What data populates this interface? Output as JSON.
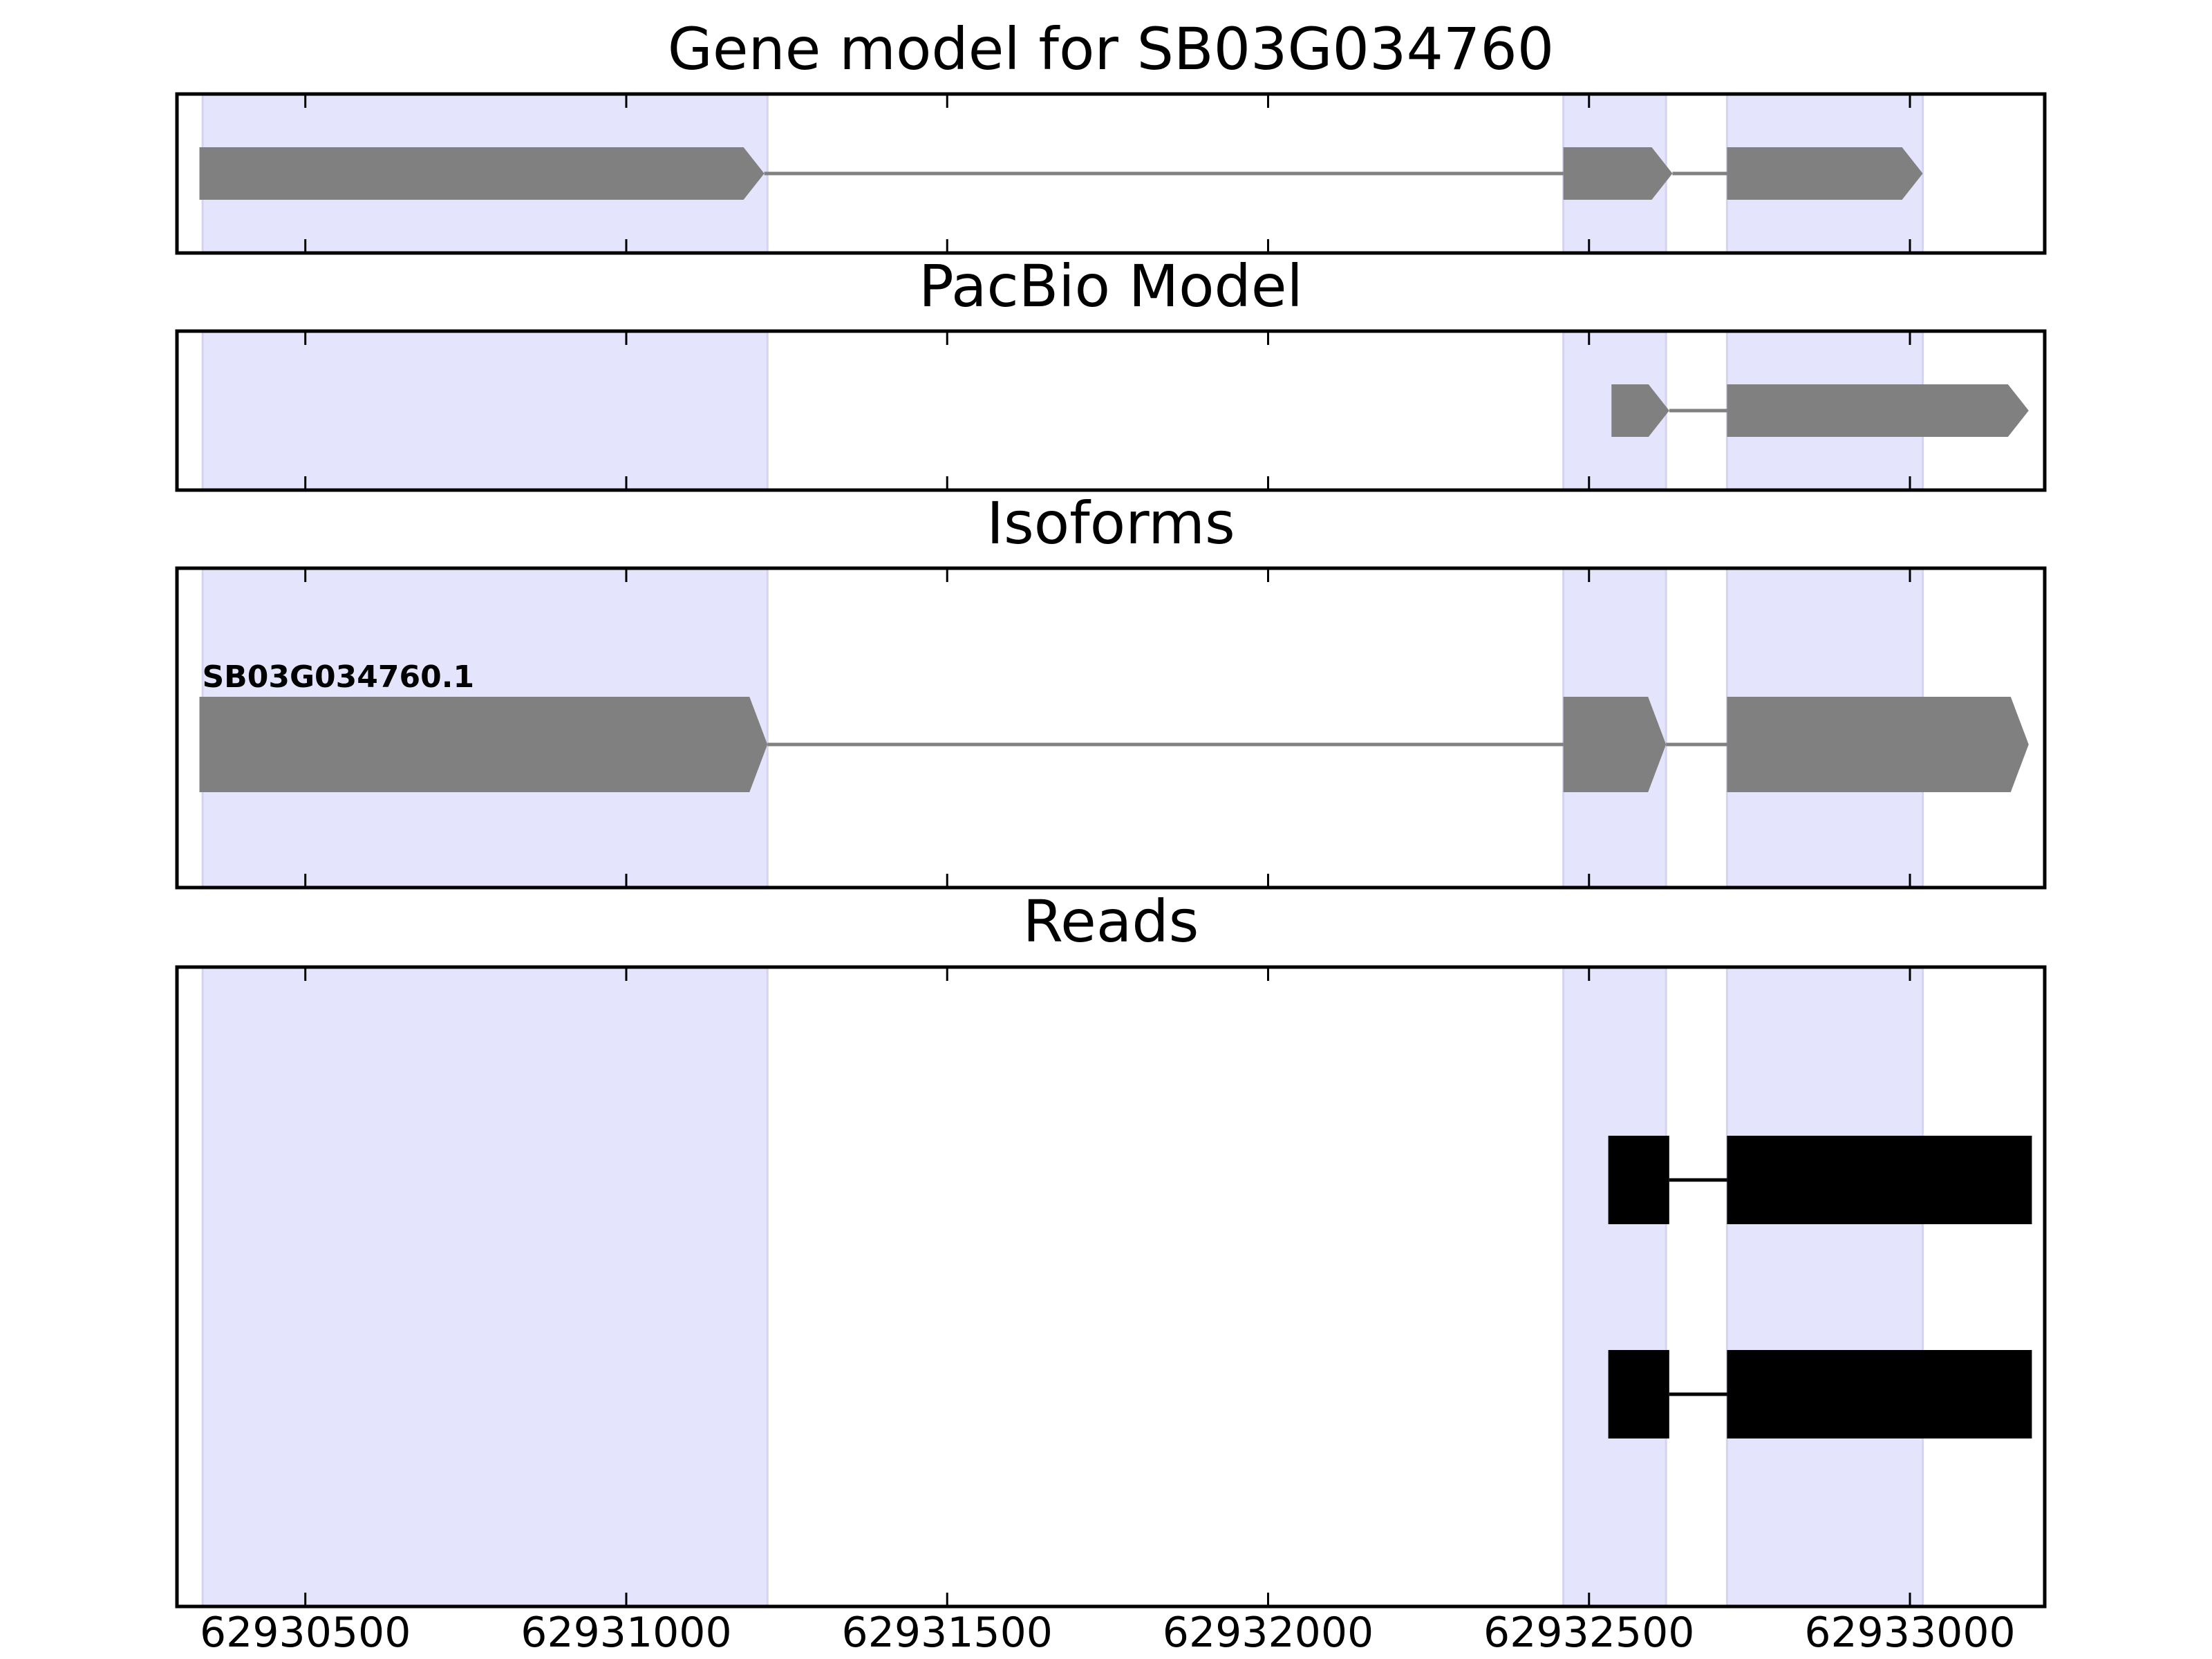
{
  "chart_data": {
    "type": "gene-model",
    "x_axis": {
      "xlim": [
        62930300,
        62933210
      ],
      "ticks": [
        62930500,
        62931000,
        62931500,
        62932000,
        62932500,
        62933000
      ],
      "tick_labels": [
        "62930500",
        "62931000",
        "62931500",
        "62932000",
        "62932500",
        "62933000"
      ]
    },
    "highlight_regions": [
      [
        62930340,
        62931220
      ],
      [
        62932460,
        62932620
      ],
      [
        62932715,
        62933020
      ]
    ],
    "colors": {
      "highlight": "#e4e4fc",
      "highlight_edge": "#d4d4f0",
      "feature": "#808080",
      "read": "#000000",
      "axes": "#000000"
    },
    "panels": [
      {
        "title": "Gene model for SB03G034760",
        "features": [
          {
            "strand": "+",
            "exons": [
              [
                62930335,
                62931215
              ],
              [
                62932460,
                62932630
              ],
              [
                62932715,
                62933020
              ]
            ]
          }
        ]
      },
      {
        "title": "PacBio Model",
        "features": [
          {
            "strand": "+",
            "exons": [
              [
                62932535,
                62932625
              ],
              [
                62932715,
                62933185
              ]
            ]
          }
        ]
      },
      {
        "title": "Isoforms",
        "features": [
          {
            "label": "SB03G034760.1",
            "strand": "+",
            "exons": [
              [
                62930335,
                62931220
              ],
              [
                62932460,
                62932620
              ],
              [
                62932715,
                62933185
              ]
            ]
          }
        ]
      },
      {
        "title": "Reads",
        "features": [
          {
            "exons": [
              [
                62932530,
                62932625
              ],
              [
                62932715,
                62933190
              ]
            ]
          },
          {
            "exons": [
              [
                62932530,
                62932625
              ],
              [
                62932715,
                62933190
              ]
            ]
          }
        ]
      }
    ]
  }
}
